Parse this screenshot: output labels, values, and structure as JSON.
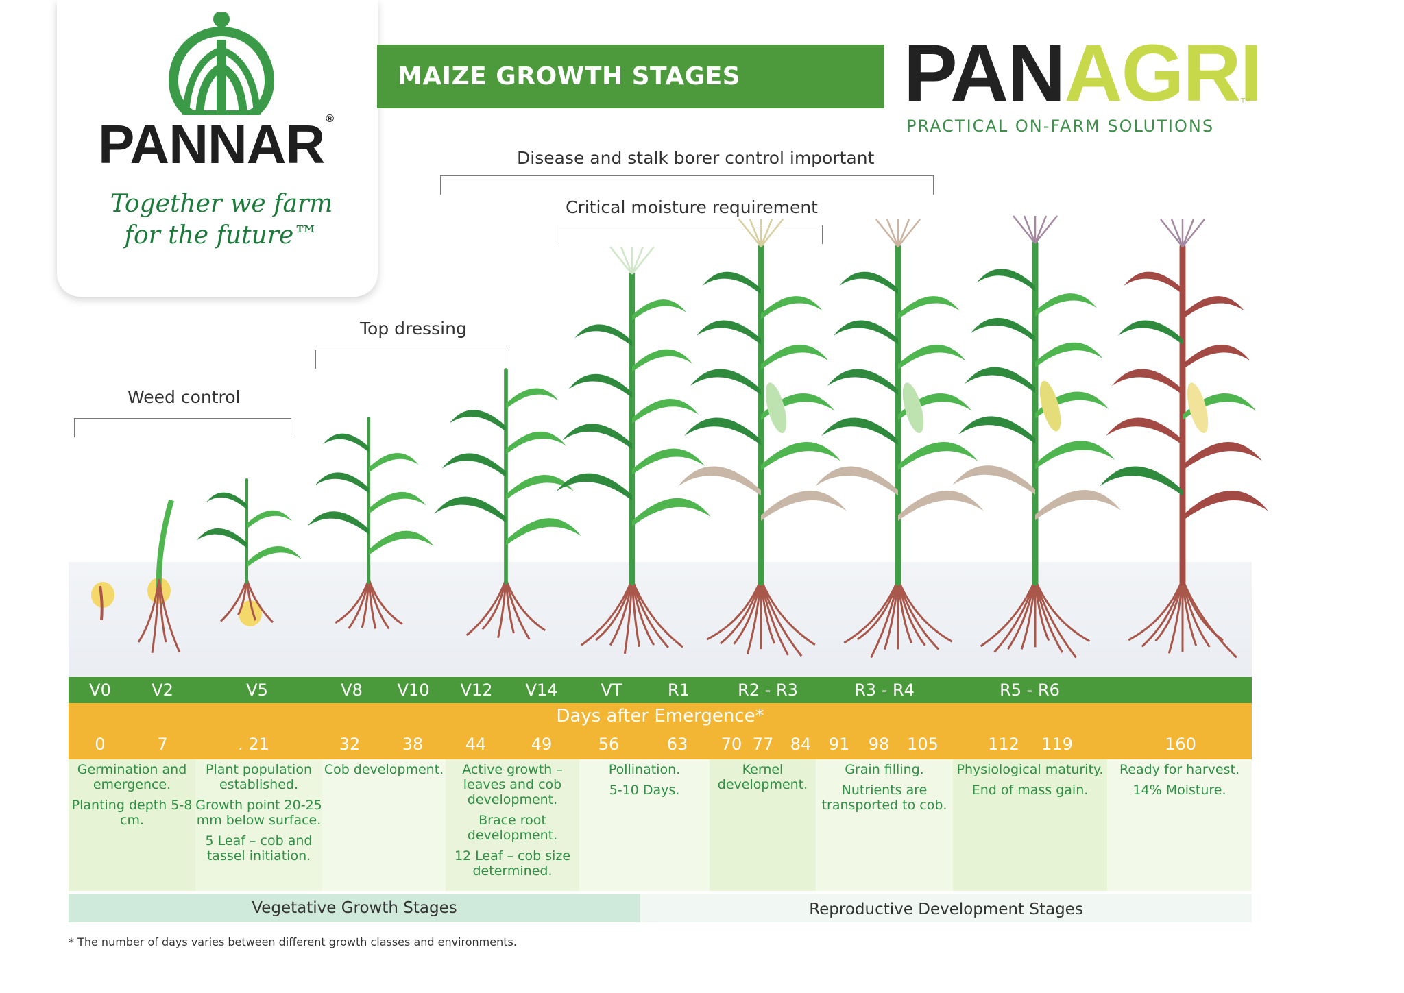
{
  "header": {
    "brand": "PANNAR",
    "registered": "®",
    "tagline_line1": "Together we farm",
    "tagline_line2": "for the future™",
    "banner_title": "MAIZE GROWTH STAGES",
    "panagri_pan": "PAN",
    "panagri_agri": "AGRI",
    "panagri_tm": "TM",
    "panagri_subtitle": "PRACTICAL ON-FARM SOLUTIONS"
  },
  "management": {
    "weed_control": "Weed control",
    "top_dressing": "Top dressing",
    "critical_moisture": "Critical moisture requirement",
    "disease_stalk_borer": "Disease and stalk borer control important"
  },
  "stages": [
    "V0",
    "V2",
    "V5",
    "V8",
    "V10",
    "V12",
    "V14",
    "VT",
    "R1",
    "R2 - R3",
    "R3 - R4",
    "R5 - R6"
  ],
  "days_title": "Days after Emergence*",
  "days": [
    "0",
    "7",
    ". 21",
    "32",
    "38",
    "44",
    "49",
    "56",
    "63",
    "70",
    "77",
    "84",
    "91",
    "98",
    "105",
    "112",
    "119",
    "160"
  ],
  "descriptions": {
    "germination": [
      "Germination and emergence.",
      "Planting depth 5-8 cm."
    ],
    "population": [
      "Plant population established.",
      "Growth point 20-25 mm below surface.",
      "5 Leaf – cob and tassel initiation."
    ],
    "cob_dev": [
      "Cob development."
    ],
    "active_growth": [
      "Active growth – leaves and cob development.",
      "Brace root development.",
      "12 Leaf – cob size determined."
    ],
    "pollination": [
      "Pollination.",
      "5-10 Days."
    ],
    "kernel": [
      "Kernel development."
    ],
    "grain": [
      "Grain filling.",
      "Nutrients are transported to cob."
    ],
    "physiological": [
      "Physiological maturity.",
      "End of mass gain."
    ],
    "harvest": [
      "Ready for harvest.",
      "14% Moisture."
    ]
  },
  "phases": {
    "vegetative": "Vegetative Growth Stages",
    "reproductive": "Reproductive Development Stages"
  },
  "footnote": "* The number of days varies between different growth classes and environments.",
  "colors": {
    "brand_green": "#4a9a3b",
    "days_orange": "#f2b534",
    "leaf_green": "#3f9d45",
    "root_brown": "#a9574a",
    "agri_yellow": "#c7d94a"
  }
}
